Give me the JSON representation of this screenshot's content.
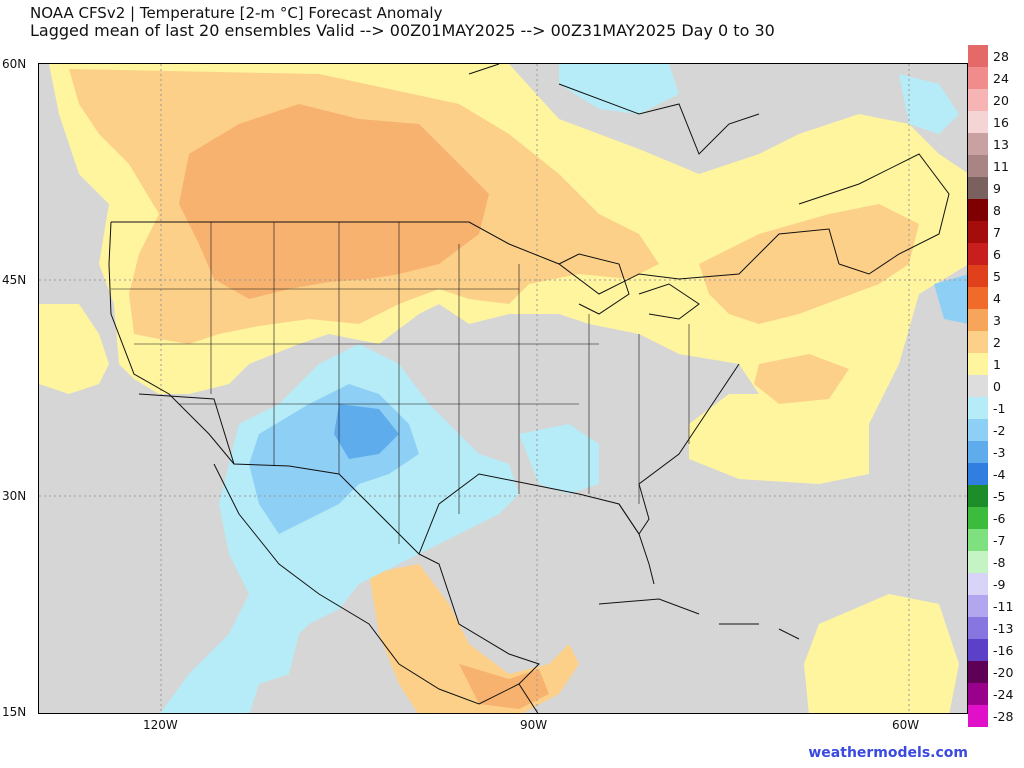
{
  "header": {
    "title": "NOAA CFSv2 | Temperature [2-m °C] Forecast Anomaly",
    "subtitle": "Lagged mean of last 20 ensembles Valid --> 00Z01MAY2025 --> 00Z31MAY2025  Day 0 to 30"
  },
  "axes": {
    "lat_labels": [
      "60N",
      "45N",
      "30N",
      "15N"
    ],
    "lon_labels": [
      "120W",
      "90W",
      "60W"
    ]
  },
  "colorbar": {
    "labels": [
      "28",
      "24",
      "20",
      "16",
      "13",
      "11",
      "9",
      "8",
      "7",
      "6",
      "5",
      "4",
      "3",
      "2",
      "1",
      "0",
      "-1",
      "-2",
      "-3",
      "-4",
      "-5",
      "-6",
      "-7",
      "-8",
      "-9",
      "-11",
      "-13",
      "-16",
      "-20",
      "-24",
      "-28"
    ],
    "colors": [
      "#e46a6a",
      "#f08c8c",
      "#f6b4b4",
      "#f4d4d4",
      "#caa1a1",
      "#a88484",
      "#7b6060",
      "#7f0000",
      "#a50d0d",
      "#c81e1e",
      "#e0411c",
      "#f06a2a",
      "#f6a55a",
      "#fcd088",
      "#fff59f",
      "#dddddd",
      "#b6ecf8",
      "#8ed0f5",
      "#5eacec",
      "#2f7ee0",
      "#1d8d2a",
      "#3cbb3c",
      "#7ee07e",
      "#c4f4c4",
      "#d7d4f7",
      "#b2a6ef",
      "#8876e0",
      "#5c40c8",
      "#5e0056",
      "#99008c",
      "#e010c8"
    ]
  },
  "credit": "weathermodels.com"
}
